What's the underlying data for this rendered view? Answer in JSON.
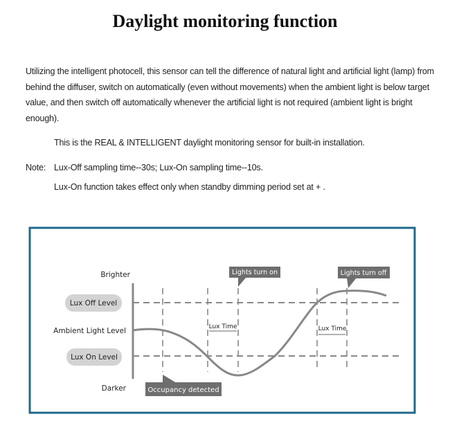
{
  "title": "Daylight monitoring function",
  "description": "Utilizing the intelligent photocell, this sensor can tell the difference of natural light and artificial light (lamp) from behind the diffuser, switch on automatically (even without movements) when the ambient light is below target value,  and then switch off automatically whenever the artificial light is not required (ambient light is bright enough).",
  "highlight": "This is the REAL & INTELLIGENT daylight monitoring sensor for built-in installation.",
  "note": {
    "label": "Note:",
    "line1": "Lux-Off sampling time--30s;  Lux-On sampling time--10s.",
    "line2": "Lux-On function takes effect only when standby dimming period set at +    ."
  },
  "diagram": {
    "frame_color": "#1f6a8c",
    "axis_top": "Brighter",
    "axis_bottom": "Darker",
    "ambient_label": "Ambient Light Level",
    "lux_off_level": "Lux Off Level",
    "lux_on_level": "Lux On Level",
    "lux_time_1": "Lux Time",
    "lux_time_2": "Lux Time",
    "callout_lights_on": "Lights turn on",
    "callout_lights_off": "Lights turn off",
    "callout_occupancy": "Occupancy detected"
  }
}
